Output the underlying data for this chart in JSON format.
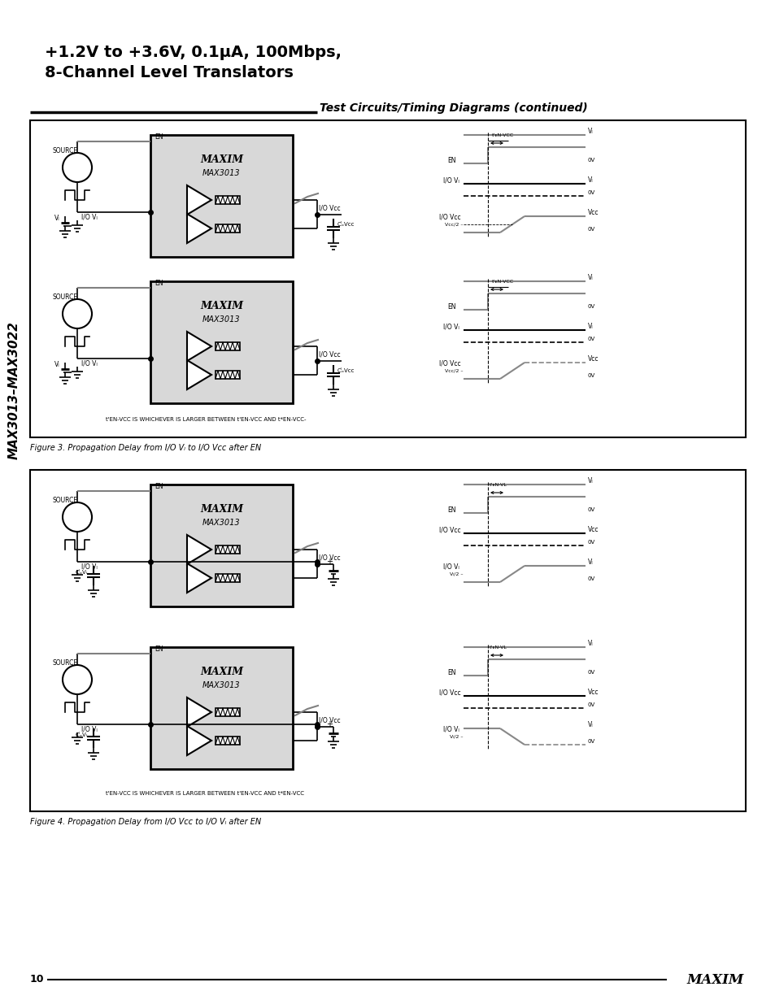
{
  "page_width": 9.54,
  "page_height": 12.35,
  "bg_color": "#ffffff",
  "title_line1": "+1.2V to +3.6V, 0.1μA, 100Mbps,",
  "title_line2": "8-Channel Level Translators",
  "section_title": "Test Circuits/Timing Diagrams (continued)",
  "sidebar_text": "MAX3013–MAX3022",
  "page_number": "10",
  "black": "#000000",
  "gray": "#888888",
  "light_gray": "#cccccc",
  "ic_fill": "#d8d8d8"
}
